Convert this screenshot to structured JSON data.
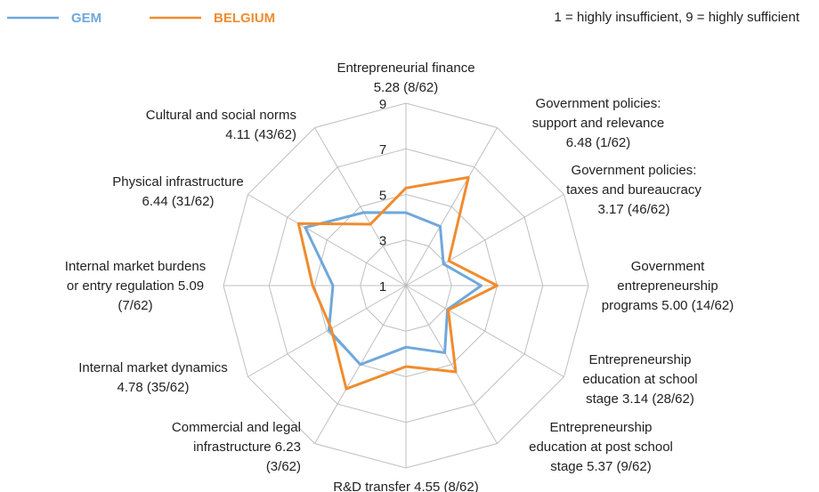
{
  "chart_data": {
    "type": "radar",
    "note": "1 = highly insufficient,  9 = highly sufficient",
    "categories": [
      [
        "Entrepreneurial finance",
        "5.28 (8/62)"
      ],
      [
        "Government policies:",
        "support and relevance",
        "6.48 (1/62)"
      ],
      [
        "Government policies:",
        "taxes and bureaucracy",
        "3.17 (46/62)"
      ],
      [
        "Government",
        "entrepreneurship",
        "programs 5.00 (14/62)"
      ],
      [
        "Entrepreneurship",
        "education at school",
        "stage 3.14 (28/62)"
      ],
      [
        "Entrepreneurship",
        "education at post school",
        "stage 5.37 (9/62)"
      ],
      [
        "R&D transfer 4.55 (8/62)"
      ],
      [
        "Commercial and legal",
        "infrastructure 6.23",
        "(3/62)"
      ],
      [
        "Internal market dynamics",
        "4.78 (35/62)"
      ],
      [
        "Internal market burdens",
        "or entry regulation 5.09",
        "(7/62)"
      ],
      [
        "Physical infrastructure",
        "6.44 (31/62)"
      ],
      [
        "Cultural and social norms",
        "4.11 (43/62)"
      ]
    ],
    "series": [
      {
        "name": "GEM",
        "color": "#6fa8dc",
        "values": [
          4.2,
          4.0,
          2.9,
          4.3,
          3.1,
          4.4,
          3.7,
          5.0,
          4.9,
          4.2,
          6.1,
          4.7
        ]
      },
      {
        "name": "BELGIUM",
        "color": "#f08c2e",
        "values": [
          5.28,
          6.48,
          3.17,
          5.0,
          3.14,
          5.37,
          4.55,
          6.23,
          4.78,
          5.09,
          6.44,
          4.11
        ]
      }
    ],
    "ylim": [
      1,
      9
    ],
    "yticks": [
      1,
      3,
      5,
      7,
      9
    ],
    "grid": true
  }
}
